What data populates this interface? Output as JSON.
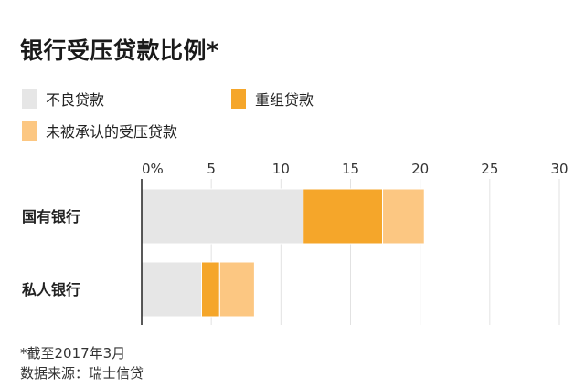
{
  "title": "银行受压贷款比例*",
  "legend": [
    {
      "label": "不良贷款",
      "color": "#e6e6e6"
    },
    {
      "label": "重组贷款",
      "color": "#f5a62a"
    },
    {
      "label": "未被承认的受压贷款",
      "color": "#fcc782"
    }
  ],
  "chart_data": {
    "type": "bar",
    "orientation": "horizontal",
    "stacked": true,
    "categories": [
      "国有银行",
      "私人银行"
    ],
    "series": [
      {
        "name": "不良贷款",
        "values": [
          11.6,
          4.3
        ],
        "color": "#e6e6e6"
      },
      {
        "name": "重组贷款",
        "values": [
          5.7,
          1.3
        ],
        "color": "#f5a62a"
      },
      {
        "name": "未被承认的受压贷款",
        "values": [
          3.0,
          2.5
        ],
        "color": "#fcc782"
      }
    ],
    "xlim": [
      0,
      30
    ],
    "ticks": [
      0,
      5,
      10,
      15,
      20,
      25,
      30
    ],
    "tick_labels": [
      "0%",
      "5",
      "10",
      "15",
      "20",
      "25",
      "30"
    ],
    "grid": true,
    "legend_position": "top"
  },
  "footnotes": [
    "*截至2017年3月",
    "数据来源：瑞士信贷"
  ]
}
